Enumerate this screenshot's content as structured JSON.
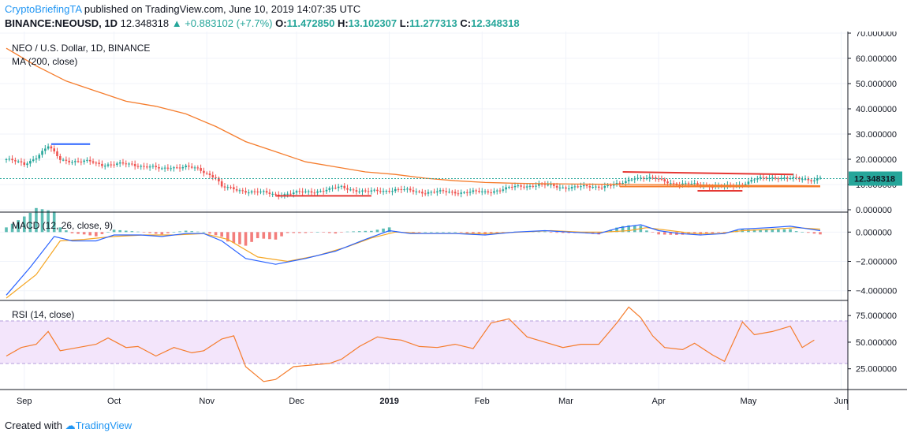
{
  "header": {
    "author": "CryptoBriefingTA",
    "published_text": "published on TradingView.com, June 10, 2019 14:07:35 UTC"
  },
  "ohlc": {
    "symbol": "BINANCE:NEOUSD, 1D",
    "close": "12.348318",
    "change": "▲ +0.883102 (+7.7%)",
    "o_label": "O:",
    "o": "11.472850",
    "h_label": "H:",
    "h": "13.102307",
    "l_label": "L:",
    "l": "11.277313",
    "c_label": "C:",
    "c": "12.348318"
  },
  "footer": {
    "created_with": "Created with",
    "brand": "TradingView"
  },
  "colors": {
    "up": "#26a69a",
    "down": "#ef5350",
    "ma": "#f57c2c",
    "macd": "#2962ff",
    "signal": "#f5a623",
    "rsi": "#f57c2c",
    "rsi_band": "#f3e5fb",
    "last_price": "#26a69a",
    "drawing": "#e53935"
  },
  "chart_data": [
    {
      "type": "candlestick",
      "title": "NEO / U.S. Dollar, 1D, BINANCE",
      "indicator_label": "MA (200, close)",
      "last_price_label": "12.348318",
      "ylim": [
        0,
        70
      ],
      "y_ticks": [
        "70.000000",
        "60.000000",
        "50.000000",
        "40.000000",
        "30.000000",
        "20.000000",
        "10.000000",
        "0.000000"
      ],
      "x_ticks": [
        "Sep",
        "Oct",
        "Nov",
        "Dec",
        "2019",
        "Feb",
        "Mar",
        "Apr",
        "May",
        "Jun"
      ],
      "price_path": [
        [
          0,
          20
        ],
        [
          6,
          18
        ],
        [
          10,
          21
        ],
        [
          14,
          25
        ],
        [
          18,
          20
        ],
        [
          24,
          19
        ],
        [
          28,
          19
        ],
        [
          32,
          18
        ],
        [
          36,
          18
        ],
        [
          42,
          18
        ],
        [
          48,
          17
        ],
        [
          52,
          16
        ],
        [
          55,
          17
        ],
        [
          60,
          17
        ],
        [
          64,
          16
        ],
        [
          70,
          13
        ],
        [
          72,
          9
        ],
        [
          76,
          8
        ],
        [
          84,
          7
        ],
        [
          90,
          6
        ],
        [
          100,
          7
        ],
        [
          108,
          8
        ],
        [
          112,
          9
        ],
        [
          120,
          7
        ],
        [
          130,
          8
        ],
        [
          140,
          7
        ],
        [
          150,
          7
        ],
        [
          160,
          7
        ],
        [
          170,
          9
        ],
        [
          178,
          10
        ],
        [
          185,
          9
        ],
        [
          195,
          9
        ],
        [
          205,
          10
        ],
        [
          210,
          13
        ],
        [
          218,
          12
        ],
        [
          225,
          10
        ],
        [
          232,
          10
        ],
        [
          240,
          9
        ],
        [
          245,
          10
        ],
        [
          250,
          12
        ],
        [
          258,
          13
        ],
        [
          265,
          12
        ],
        [
          270,
          12
        ],
        [
          272,
          13
        ]
      ],
      "ma_path": [
        [
          0,
          64
        ],
        [
          10,
          57
        ],
        [
          20,
          51
        ],
        [
          30,
          47
        ],
        [
          40,
          43
        ],
        [
          50,
          41
        ],
        [
          60,
          38
        ],
        [
          70,
          33
        ],
        [
          80,
          27
        ],
        [
          90,
          23
        ],
        [
          100,
          19
        ],
        [
          110,
          17
        ],
        [
          120,
          15
        ],
        [
          130,
          14
        ],
        [
          140,
          12.5
        ],
        [
          150,
          11.5
        ],
        [
          160,
          10.8
        ],
        [
          170,
          10.5
        ],
        [
          180,
          10.3
        ],
        [
          190,
          10.2
        ],
        [
          200,
          10.1
        ],
        [
          210,
          10
        ],
        [
          220,
          9.9
        ],
        [
          230,
          9.8
        ],
        [
          240,
          9.7
        ],
        [
          250,
          9.6
        ],
        [
          260,
          9.6
        ],
        [
          272,
          9.5
        ]
      ],
      "annotations": [
        {
          "from": [
            15,
            26
          ],
          "to": [
            28,
            26
          ],
          "color": "blue"
        },
        {
          "from": [
            90,
            5.5
          ],
          "to": [
            122,
            5.5
          ],
          "color": "red"
        },
        {
          "from": [
            206,
            15
          ],
          "to": [
            263,
            14
          ],
          "color": "red"
        },
        {
          "from": [
            231,
            7.5
          ],
          "to": [
            246,
            7.5
          ],
          "color": "red"
        },
        {
          "from": [
            205,
            9.2
          ],
          "to": [
            272,
            9.2
          ],
          "color": "orange"
        }
      ]
    },
    {
      "type": "line",
      "title": "MACD (12, 26, close, 9)",
      "ylim": [
        -4.5,
        1.2
      ],
      "y_ticks": [
        "0.000000",
        "−2.000000",
        "−4.000000"
      ],
      "series": [
        {
          "values": [
            [
              0,
              -4.3
            ],
            [
              8,
              -2.4
            ],
            [
              16,
              -0.3
            ],
            [
              22,
              -0.6
            ],
            [
              30,
              -0.6
            ],
            [
              36,
              -0.2
            ],
            [
              45,
              -0.2
            ],
            [
              52,
              -0.3
            ],
            [
              60,
              -0.1
            ],
            [
              66,
              -0.1
            ],
            [
              72,
              -0.6
            ],
            [
              80,
              -1.8
            ],
            [
              90,
              -2.2
            ],
            [
              100,
              -1.8
            ],
            [
              110,
              -1.3
            ],
            [
              120,
              -0.5
            ],
            [
              128,
              0.1
            ],
            [
              135,
              -0.1
            ],
            [
              150,
              -0.1
            ],
            [
              160,
              -0.2
            ],
            [
              170,
              0
            ],
            [
              180,
              0.1
            ],
            [
              188,
              0
            ],
            [
              198,
              -0.1
            ],
            [
              205,
              0.3
            ],
            [
              212,
              0.5
            ],
            [
              218,
              0.1
            ],
            [
              225,
              -0.1
            ],
            [
              232,
              -0.2
            ],
            [
              240,
              -0.1
            ],
            [
              245,
              0.2
            ],
            [
              255,
              0.3
            ],
            [
              262,
              0.4
            ],
            [
              272,
              0.1
            ]
          ]
        },
        {
          "values": [
            [
              0,
              -4.5
            ],
            [
              10,
              -2.9
            ],
            [
              18,
              -0.6
            ],
            [
              26,
              -0.5
            ],
            [
              36,
              -0.3
            ],
            [
              46,
              -0.2
            ],
            [
              56,
              -0.2
            ],
            [
              66,
              -0.1
            ],
            [
              74,
              -0.5
            ],
            [
              84,
              -1.7
            ],
            [
              94,
              -2
            ],
            [
              104,
              -1.6
            ],
            [
              114,
              -1
            ],
            [
              122,
              -0.4
            ],
            [
              130,
              0
            ],
            [
              140,
              -0.1
            ],
            [
              160,
              -0.1
            ],
            [
              172,
              0
            ],
            [
              182,
              0.1
            ],
            [
              192,
              0
            ],
            [
              200,
              0
            ],
            [
              208,
              0.1
            ],
            [
              214,
              0.3
            ],
            [
              222,
              0.1
            ],
            [
              230,
              -0.1
            ],
            [
              238,
              -0.1
            ],
            [
              246,
              0.1
            ],
            [
              256,
              0.2
            ],
            [
              264,
              0.3
            ],
            [
              272,
              0.2
            ]
          ]
        }
      ]
    },
    {
      "type": "line",
      "title": "RSI (14, close)",
      "ylim": [
        7,
        87
      ],
      "band": [
        30,
        70
      ],
      "y_ticks": [
        "75.000000",
        "50.000000",
        "25.000000"
      ],
      "series": [
        {
          "values": [
            [
              0,
              37
            ],
            [
              5,
              45
            ],
            [
              10,
              48
            ],
            [
              14,
              60
            ],
            [
              18,
              42
            ],
            [
              24,
              45
            ],
            [
              30,
              48
            ],
            [
              34,
              54
            ],
            [
              40,
              45
            ],
            [
              44,
              46
            ],
            [
              50,
              37
            ],
            [
              56,
              45
            ],
            [
              62,
              40
            ],
            [
              66,
              42
            ],
            [
              72,
              53
            ],
            [
              76,
              56
            ],
            [
              80,
              27
            ],
            [
              86,
              13
            ],
            [
              90,
              15
            ],
            [
              96,
              27
            ],
            [
              100,
              28
            ],
            [
              108,
              30
            ],
            [
              112,
              34
            ],
            [
              118,
              46
            ],
            [
              124,
              55
            ],
            [
              128,
              53
            ],
            [
              132,
              52
            ],
            [
              138,
              46
            ],
            [
              144,
              45
            ],
            [
              150,
              48
            ],
            [
              156,
              44
            ],
            [
              162,
              68
            ],
            [
              168,
              72
            ],
            [
              174,
              55
            ],
            [
              180,
              50
            ],
            [
              186,
              45
            ],
            [
              192,
              48
            ],
            [
              198,
              48
            ],
            [
              204,
              68
            ],
            [
              208,
              83
            ],
            [
              212,
              73
            ],
            [
              216,
              56
            ],
            [
              220,
              45
            ],
            [
              226,
              43
            ],
            [
              230,
              49
            ],
            [
              236,
              38
            ],
            [
              240,
              32
            ],
            [
              246,
              69
            ],
            [
              250,
              57
            ],
            [
              256,
              60
            ],
            [
              262,
              65
            ],
            [
              266,
              45
            ],
            [
              270,
              52
            ]
          ]
        }
      ]
    }
  ]
}
